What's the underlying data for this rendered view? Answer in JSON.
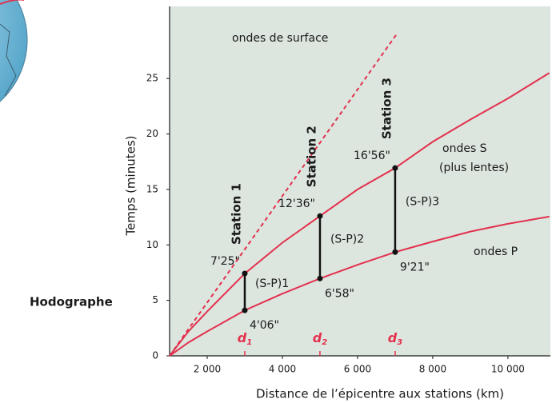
{
  "chart_data": {
    "type": "line",
    "title": "Hodographe",
    "x_label": "Distance de l’épicentre aux stations (km)",
    "y_label": "Temps (minutes)",
    "xlim": [
      1000,
      11130
    ],
    "ylim": [
      0,
      31.5
    ],
    "xticks": [
      {
        "value": 2000,
        "label": "2 000"
      },
      {
        "value": 4000,
        "label": "4 000"
      },
      {
        "value": 6000,
        "label": "6 000"
      },
      {
        "value": 8000,
        "label": "8 000"
      },
      {
        "value": 10000,
        "label": "10 000"
      }
    ],
    "yticks": [
      0,
      5,
      10,
      15,
      20,
      25
    ],
    "series": [
      {
        "name": "ondes de surface",
        "color": "#e2314d",
        "dashed": true,
        "x": [
          1000,
          7060
        ],
        "values": [
          0,
          29.1
        ]
      },
      {
        "name": "ondes S",
        "note": "(plus lentes)",
        "color": "#e2314d",
        "dashed": false,
        "x": [
          1000,
          1500,
          2000,
          3000,
          4000,
          5000,
          6000,
          7000,
          8000,
          9000,
          10000,
          11100
        ],
        "values": [
          0,
          2.2,
          4.0,
          7.42,
          10.2,
          12.6,
          15.0,
          16.93,
          19.3,
          21.3,
          23.2,
          25.5
        ]
      },
      {
        "name": "ondes P",
        "color": "#e2314d",
        "dashed": false,
        "x": [
          1000,
          1500,
          2000,
          3000,
          4000,
          5000,
          6000,
          7000,
          8000,
          9000,
          10000,
          11100
        ],
        "values": [
          0,
          1.2,
          2.2,
          4.1,
          5.6,
          6.97,
          8.2,
          9.35,
          10.3,
          11.2,
          11.9,
          12.55
        ]
      }
    ],
    "stations": {
      "x": [
        3000,
        5000,
        7000
      ],
      "labels": [
        "Station 1",
        "Station 2",
        "Station 3"
      ],
      "d_letters": [
        "d",
        "d",
        "d"
      ],
      "d_subscripts": [
        "1",
        "2",
        "3"
      ],
      "s_values": [
        7.42,
        12.6,
        16.93
      ],
      "s_value_labels": [
        "7'25\"",
        "12'36\"",
        "16'56\""
      ],
      "p_values": [
        4.1,
        6.97,
        9.35
      ],
      "p_value_labels": [
        "4'06\"",
        "6'58\"",
        "9'21\""
      ],
      "sp_labels": [
        "(S-P)1",
        "(S-P)2",
        "(S-P)3"
      ],
      "d_color": "#e2314d"
    }
  }
}
